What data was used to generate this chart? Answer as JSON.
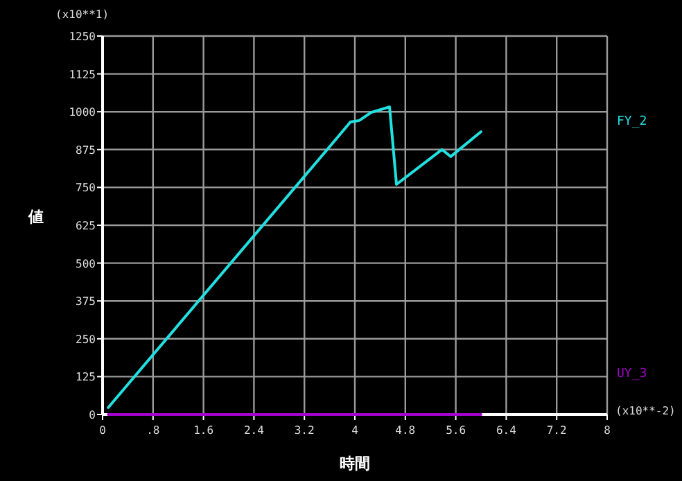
{
  "chart_data": {
    "type": "line",
    "xlabel": "時間",
    "ylabel": "値",
    "annotations": [
      "(x10**1)",
      "(x10**-2)"
    ],
    "xlim": [
      0,
      8
    ],
    "ylim": [
      0,
      1250
    ],
    "xticks": [
      0,
      {
        "value": 0.8,
        "label": ".8"
      },
      1.6,
      2.4,
      3.2,
      4,
      4.8,
      5.6,
      6.4,
      7.2,
      8
    ],
    "yticks": [
      0,
      125,
      250,
      375,
      500,
      625,
      750,
      875,
      1000,
      1125,
      1250
    ],
    "grid": true,
    "legend": "right",
    "line_style": "solid",
    "marker": "none",
    "series": [
      {
        "name": "FY_2",
        "color": "#22e0e0",
        "x": [
          0.09,
          3.65,
          3.93,
          4.07,
          4.26,
          4.55,
          4.66,
          5.38,
          5.52,
          6.0
        ],
        "values": [
          23,
          897,
          966,
          971,
          998,
          1016,
          760,
          875,
          852,
          934
        ]
      },
      {
        "name": "UY_3",
        "color": "#a000c8",
        "x": [
          0.09,
          6.0
        ],
        "values": [
          0,
          0
        ]
      }
    ]
  }
}
